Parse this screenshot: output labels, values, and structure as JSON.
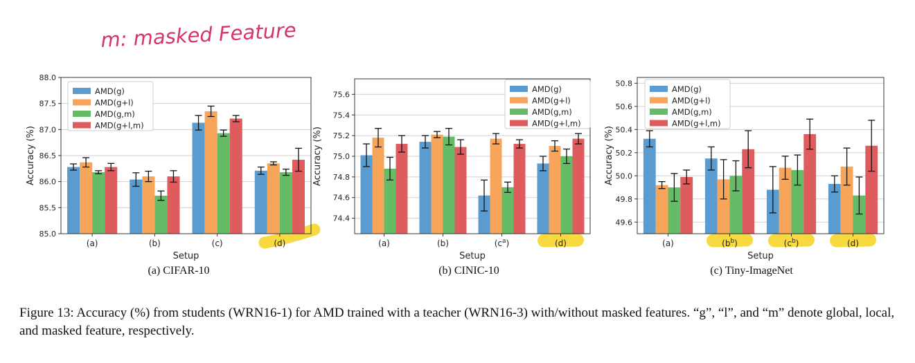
{
  "handwritten_note": "m: masked Feature",
  "caption": "Figure 13: Accuracy (%) from students (WRN16-1) for AMD trained with a teacher (WRN16-3) with/without masked features. “g”, “l”, and “m” denote global, local, and masked feature, respectively.",
  "colors": {
    "AMD(g)": "#5a9bd0",
    "AMD(g+l)": "#f6a55b",
    "AMD(g,m)": "#66bb66",
    "AMD(g+l,m)": "#de5c5e",
    "highlight": "#f7d21e"
  },
  "chart_data": [
    {
      "type": "bar",
      "subtitle": "(a) CIFAR-10",
      "xlabel": "Setup",
      "ylabel": "Accuracy (%)",
      "ylim": [
        85.0,
        88.0
      ],
      "yticks": [
        "85.0",
        "85.5",
        "86.0",
        "86.5",
        "87.0",
        "87.5",
        "88.0"
      ],
      "categories": [
        "(a)",
        "(b)",
        "(c)",
        "(d)"
      ],
      "highlighted_categories": [
        "(d)"
      ],
      "legend_position": "top-left",
      "grid": true,
      "series": [
        {
          "name": "AMD(g)",
          "values": [
            86.28,
            86.04,
            87.13,
            86.21
          ],
          "errors": [
            0.06,
            0.13,
            0.14,
            0.07
          ]
        },
        {
          "name": "AMD(g+l)",
          "values": [
            86.37,
            86.1,
            87.35,
            86.35
          ],
          "errors": [
            0.09,
            0.1,
            0.1,
            0.03
          ]
        },
        {
          "name": "AMD(g,m)",
          "values": [
            86.18,
            85.73,
            86.93,
            86.18
          ],
          "errors": [
            0.03,
            0.09,
            0.06,
            0.06
          ]
        },
        {
          "name": "AMD(g+l,m)",
          "values": [
            86.28,
            86.1,
            87.21,
            86.42
          ],
          "errors": [
            0.07,
            0.11,
            0.06,
            0.22
          ]
        }
      ]
    },
    {
      "type": "bar",
      "subtitle": "(b) CINIC-10",
      "xlabel": "Setup",
      "ylabel": "Accuracy (%)",
      "ylim": [
        74.25,
        75.75
      ],
      "yticks": [
        "74.4",
        "74.6",
        "74.8",
        "75.0",
        "75.2",
        "75.4",
        "75.6"
      ],
      "categories": [
        "(a)",
        "(b)",
        "(c^a)",
        "(d)"
      ],
      "highlighted_categories": [
        "(d)"
      ],
      "legend_position": "top-right",
      "grid": true,
      "series": [
        {
          "name": "AMD(g)",
          "values": [
            75.01,
            75.14,
            74.62,
            74.93
          ],
          "errors": [
            0.11,
            0.06,
            0.15,
            0.07
          ]
        },
        {
          "name": "AMD(g+l)",
          "values": [
            75.18,
            75.21,
            75.17,
            75.1
          ],
          "errors": [
            0.09,
            0.03,
            0.05,
            0.05
          ]
        },
        {
          "name": "AMD(g,m)",
          "values": [
            74.88,
            75.19,
            74.7,
            75.0
          ],
          "errors": [
            0.11,
            0.08,
            0.05,
            0.07
          ]
        },
        {
          "name": "AMD(g+l,m)",
          "values": [
            75.12,
            75.09,
            75.12,
            75.17
          ],
          "errors": [
            0.08,
            0.07,
            0.04,
            0.05
          ]
        }
      ]
    },
    {
      "type": "bar",
      "subtitle": "(c) Tiny-ImageNet",
      "xlabel": "Setup",
      "ylabel": "Accuracy (%)",
      "ylim": [
        49.5,
        50.85
      ],
      "yticks": [
        "49.6",
        "49.8",
        "50.0",
        "50.2",
        "50.4",
        "50.6",
        "50.8"
      ],
      "categories": [
        "(a)",
        "(b^b)",
        "(c^b)",
        "(d)"
      ],
      "highlighted_categories": [
        "(b^b)",
        "(c^b)",
        "(d)"
      ],
      "legend_position": "top-left",
      "grid": true,
      "series": [
        {
          "name": "AMD(g)",
          "values": [
            50.32,
            50.15,
            49.88,
            49.93
          ],
          "errors": [
            0.07,
            0.1,
            0.2,
            0.07
          ]
        },
        {
          "name": "AMD(g+l)",
          "values": [
            49.92,
            49.97,
            50.07,
            50.08
          ],
          "errors": [
            0.03,
            0.17,
            0.1,
            0.16
          ]
        },
        {
          "name": "AMD(g,m)",
          "values": [
            49.9,
            50.0,
            50.05,
            49.83
          ],
          "errors": [
            0.12,
            0.13,
            0.13,
            0.16
          ]
        },
        {
          "name": "AMD(g+l,m)",
          "values": [
            49.99,
            50.23,
            50.36,
            50.26
          ],
          "errors": [
            0.06,
            0.16,
            0.13,
            0.22
          ]
        }
      ]
    }
  ]
}
